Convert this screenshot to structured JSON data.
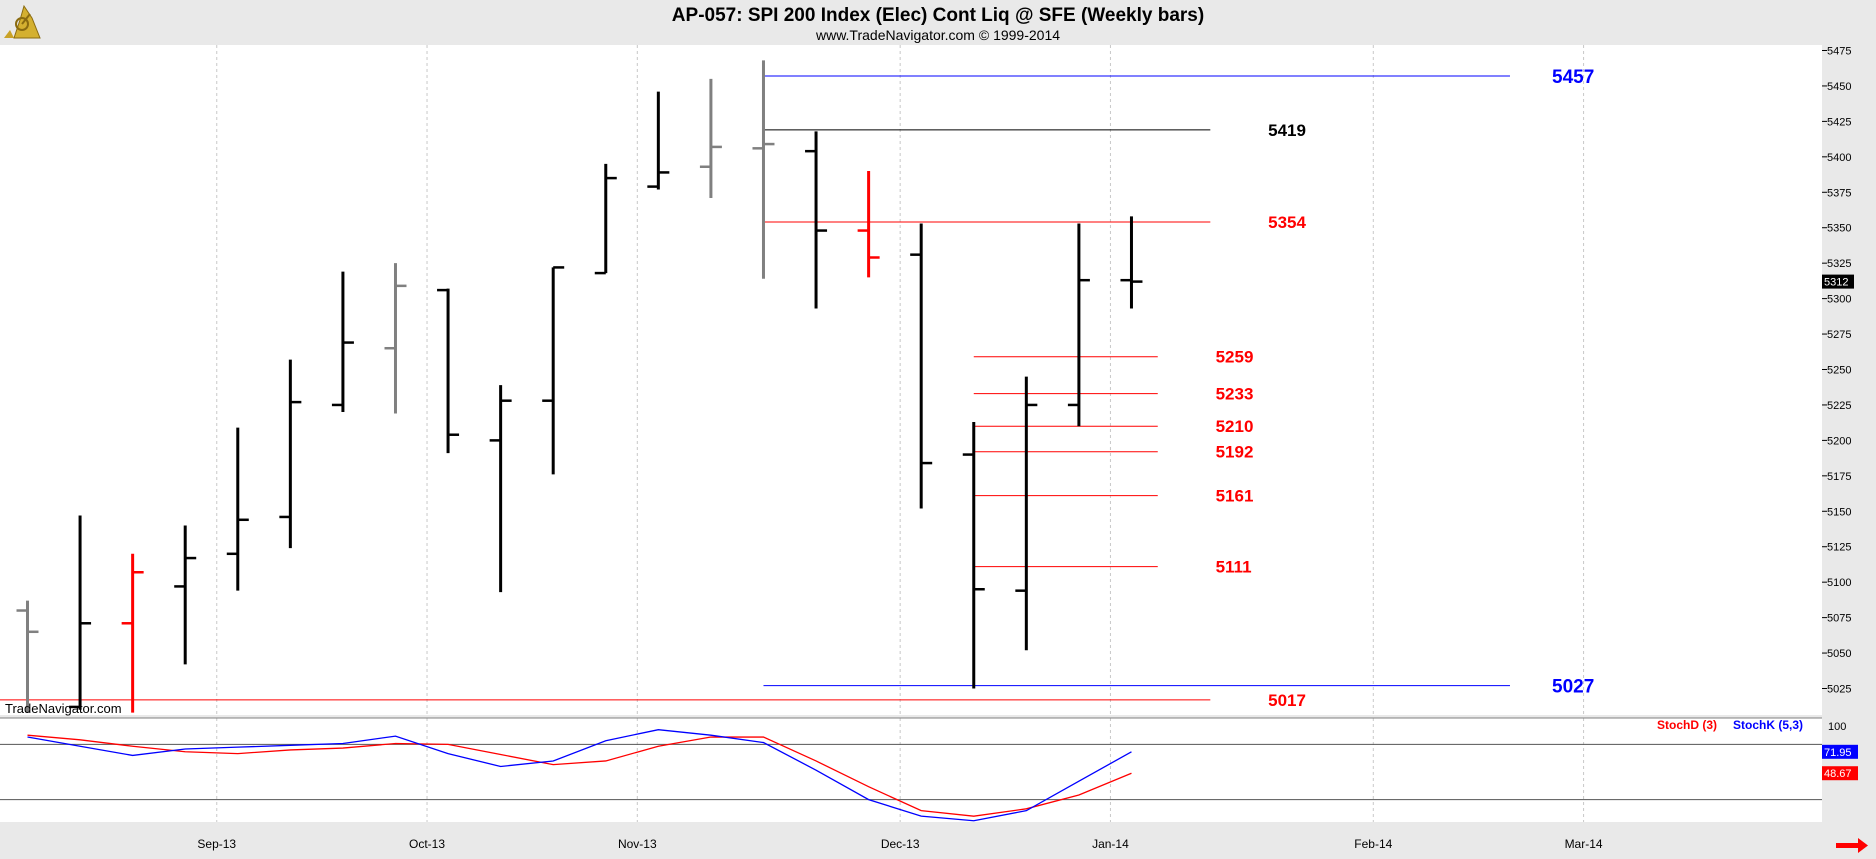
{
  "header": {
    "title": "AP-057:  SPI 200 Index (Elec) Cont Liq @ SFE  (Weekly bars)",
    "subtitle": "www.TradeNavigator.com © 1999-2014"
  },
  "watermark": "TradeNavigator.com",
  "colors": {
    "up": "#000000",
    "down_gray": "#808080",
    "red": "#ff0000",
    "blue": "#0000ff",
    "grid": "#c8c8c8",
    "panel_bg": "#ffffff",
    "outer_bg": "#e9e9e9"
  },
  "chart_data": [
    {
      "type": "ohlc",
      "title": "AP-057:  SPI 200 Index (Elec) Cont Liq @ SFE  (Weekly bars)",
      "ylim": [
        5008,
        5477
      ],
      "y_ticks": [
        5025,
        5050,
        5075,
        5100,
        5125,
        5150,
        5175,
        5200,
        5225,
        5250,
        5275,
        5300,
        5325,
        5350,
        5375,
        5400,
        5425,
        5450,
        5475
      ],
      "x_ticks": [
        {
          "label": "Sep-13",
          "bar": 3.6
        },
        {
          "label": "Oct-13",
          "bar": 7.6
        },
        {
          "label": "Nov-13",
          "bar": 11.6
        },
        {
          "label": "Dec-13",
          "bar": 16.6
        },
        {
          "label": "Jan-14",
          "bar": 20.6
        },
        {
          "label": "Feb-14",
          "bar": 25.6
        },
        {
          "label": "Mar-14",
          "bar": 29.6
        }
      ],
      "bars": [
        {
          "o": 5080,
          "h": 5087,
          "l": 5008,
          "c": 5065,
          "color": "gray"
        },
        {
          "o": 5012,
          "h": 5147,
          "l": 5010,
          "c": 5071,
          "color": "black"
        },
        {
          "o": 5071,
          "h": 5120,
          "l": 5008,
          "c": 5107,
          "color": "red"
        },
        {
          "o": 5097,
          "h": 5140,
          "l": 5042,
          "c": 5117,
          "color": "black"
        },
        {
          "o": 5120,
          "h": 5209,
          "l": 5094,
          "c": 5144,
          "color": "black"
        },
        {
          "o": 5146,
          "h": 5257,
          "l": 5124,
          "c": 5227,
          "color": "black"
        },
        {
          "o": 5225,
          "h": 5319,
          "l": 5220,
          "c": 5269,
          "color": "black"
        },
        {
          "o": 5265,
          "h": 5325,
          "l": 5219,
          "c": 5309,
          "color": "gray"
        },
        {
          "o": 5306,
          "h": 5307,
          "l": 5191,
          "c": 5204,
          "color": "black"
        },
        {
          "o": 5200,
          "h": 5239,
          "l": 5093,
          "c": 5228,
          "color": "black"
        },
        {
          "o": 5228,
          "h": 5322,
          "l": 5176,
          "c": 5322,
          "color": "black"
        },
        {
          "o": 5318,
          "h": 5395,
          "l": 5318,
          "c": 5385,
          "color": "black"
        },
        {
          "o": 5379,
          "h": 5446,
          "l": 5377,
          "c": 5389,
          "color": "black"
        },
        {
          "o": 5393,
          "h": 5455,
          "l": 5371,
          "c": 5407,
          "color": "gray"
        },
        {
          "o": 5406,
          "h": 5468,
          "l": 5314,
          "c": 5409,
          "color": "gray"
        },
        {
          "o": 5404,
          "h": 5418,
          "l": 5293,
          "c": 5348,
          "color": "black"
        },
        {
          "o": 5348,
          "h": 5390,
          "l": 5315,
          "c": 5329,
          "color": "red"
        },
        {
          "o": 5331,
          "h": 5353,
          "l": 5152,
          "c": 5184,
          "color": "black"
        },
        {
          "o": 5190,
          "h": 5213,
          "l": 5025,
          "c": 5095,
          "color": "black"
        },
        {
          "o": 5094,
          "h": 5245,
          "l": 5052,
          "c": 5225,
          "color": "black"
        },
        {
          "o": 5225,
          "h": 5353,
          "l": 5210,
          "c": 5313,
          "color": "black"
        },
        {
          "o": 5313,
          "h": 5358,
          "l": 5293,
          "c": 5312,
          "color": "black"
        }
      ],
      "last_price": "5312",
      "levels": [
        {
          "value": 5457,
          "label": "5457",
          "color": "blue",
          "from_bar": 14.0,
          "to_bar": 28.2,
          "label_bar": 29.0
        },
        {
          "value": 5419,
          "label": "5419",
          "color": "black",
          "from_bar": 14.0,
          "to_bar": 22.5,
          "label_bar": 23.6
        },
        {
          "value": 5354,
          "label": "5354",
          "color": "red",
          "from_bar": 14.0,
          "to_bar": 22.5,
          "label_bar": 23.6
        },
        {
          "value": 5259,
          "label": "5259",
          "color": "red",
          "from_bar": 18.0,
          "to_bar": 21.5,
          "label_bar": 22.6
        },
        {
          "value": 5233,
          "label": "5233",
          "color": "red",
          "from_bar": 18.0,
          "to_bar": 21.5,
          "label_bar": 22.6
        },
        {
          "value": 5210,
          "label": "5210",
          "color": "red",
          "from_bar": 18.0,
          "to_bar": 21.5,
          "label_bar": 22.6
        },
        {
          "value": 5192,
          "label": "5192",
          "color": "red",
          "from_bar": 18.0,
          "to_bar": 21.5,
          "label_bar": 22.6
        },
        {
          "value": 5161,
          "label": "5161",
          "color": "red",
          "from_bar": 18.0,
          "to_bar": 21.5,
          "label_bar": 22.6
        },
        {
          "value": 5111,
          "label": "5111",
          "color": "red",
          "from_bar": 18.0,
          "to_bar": 21.5,
          "label_bar": 22.6
        },
        {
          "value": 5027,
          "label": "5027",
          "color": "blue",
          "from_bar": 14.0,
          "to_bar": 28.2,
          "label_bar": 29.0
        },
        {
          "value": 5017,
          "label": "5017",
          "color": "red",
          "from_bar": -0.6,
          "to_bar": 22.5,
          "label_bar": 23.6
        }
      ]
    },
    {
      "type": "line",
      "title": "",
      "ylim": [
        0,
        100
      ],
      "y_ticks": [
        100
      ],
      "ref_lines": [
        80,
        20
      ],
      "legend": "top-right",
      "series": [
        {
          "name": "StochD (3)",
          "color": "red",
          "values": [
            90,
            85,
            78,
            72,
            70,
            74,
            76,
            81,
            80,
            69,
            58,
            62,
            78,
            88,
            88,
            62,
            34,
            8,
            2,
            10,
            25,
            48.67
          ]
        },
        {
          "name": "StochK (5,3)",
          "color": "blue",
          "values": [
            88,
            78,
            68,
            75,
            77,
            79,
            81,
            89,
            70,
            56,
            62,
            84,
            96,
            90,
            82,
            52,
            20,
            2,
            -3,
            8,
            40,
            71.95
          ]
        }
      ],
      "last_values": {
        "red": "48.67",
        "blue": "71.95"
      }
    }
  ]
}
